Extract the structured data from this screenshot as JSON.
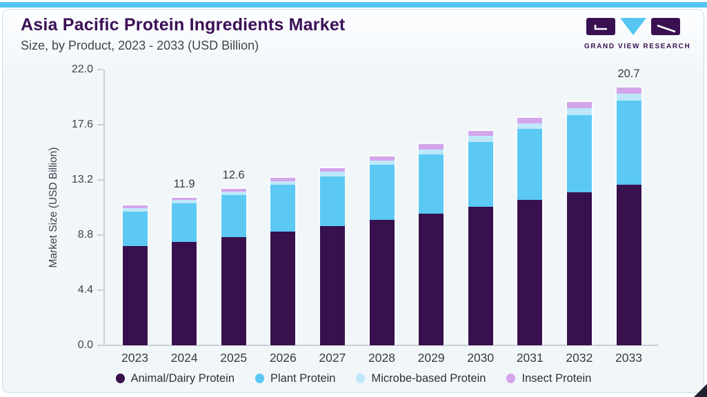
{
  "page": {
    "accent_color": "#55c6f1",
    "card_border_color": "#c7deec",
    "plot_bg_color": "#f1f6f9"
  },
  "header": {
    "title": "Asia Pacific Protein Ingredients Market",
    "subtitle": "Size, by Product, 2023 - 2033 (USD Billion)",
    "logo_text": "GRAND VIEW RESEARCH",
    "logo_colors": {
      "block": "#3a1150",
      "triangle": "#55c6f1"
    }
  },
  "chart_data": {
    "type": "bar",
    "stacked": true,
    "title": "Asia Pacific Protein Ingredients Market Size, by Product, 2023 - 2033 (USD Billion)",
    "xlabel": "",
    "ylabel": "Market Size (USD Billion)",
    "ylim": [
      0,
      22
    ],
    "yticks": [
      0.0,
      4.4,
      8.8,
      13.2,
      17.6,
      22.0
    ],
    "grid": false,
    "legend_position": "bottom",
    "categories": [
      "2023",
      "2024",
      "2025",
      "2026",
      "2027",
      "2028",
      "2029",
      "2030",
      "2031",
      "2032",
      "2033"
    ],
    "series": [
      {
        "name": "Animal/Dairy Protein",
        "color": "#38104e",
        "values": [
          8.0,
          8.35,
          8.7,
          9.15,
          9.6,
          10.1,
          10.6,
          11.15,
          11.7,
          12.3,
          12.9
        ]
      },
      {
        "name": "Plant Protein",
        "color": "#5cc9f4",
        "values": [
          2.75,
          3.1,
          3.4,
          3.75,
          4.0,
          4.4,
          4.75,
          5.2,
          5.65,
          6.15,
          6.75
        ]
      },
      {
        "name": "Microbe-based Protein",
        "color": "#bee8fa",
        "values": [
          0.3,
          0.25,
          0.28,
          0.3,
          0.35,
          0.35,
          0.4,
          0.45,
          0.45,
          0.55,
          0.55
        ]
      },
      {
        "name": "Insect Protein",
        "color": "#d3a5eb",
        "values": [
          0.2,
          0.2,
          0.22,
          0.25,
          0.3,
          0.35,
          0.4,
          0.4,
          0.45,
          0.5,
          0.5
        ]
      }
    ],
    "totals": [
      11.25,
      11.9,
      12.6,
      13.45,
      14.25,
      15.2,
      16.15,
      17.2,
      18.25,
      19.5,
      20.7
    ],
    "bar_labels": [
      "",
      "11.9",
      "12.6",
      "",
      "",
      "",
      "",
      "",
      "",
      "",
      "20.7"
    ]
  }
}
